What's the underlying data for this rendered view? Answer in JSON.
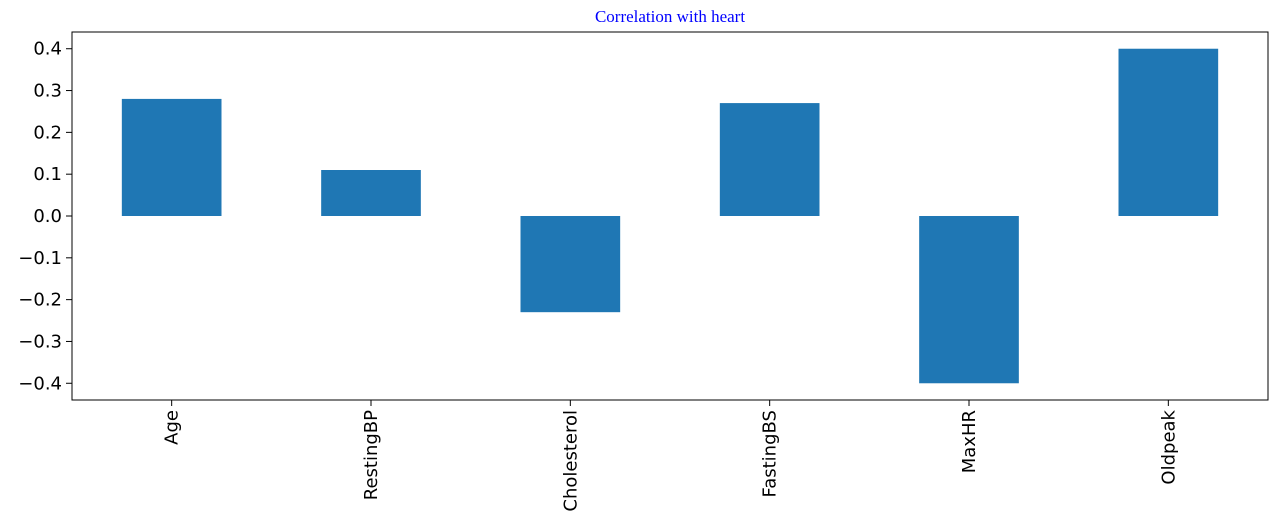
{
  "chart_data": {
    "type": "bar",
    "title": "Correlation with heart",
    "categories": [
      "Age",
      "RestingBP",
      "Cholesterol",
      "FastingBS",
      "MaxHR",
      "Oldpeak"
    ],
    "values": [
      0.28,
      0.11,
      -0.23,
      0.27,
      -0.4,
      0.4
    ],
    "xlabel": "",
    "ylabel": "",
    "ylim": [
      -0.44,
      0.44
    ],
    "yticks": [
      0.4,
      0.3,
      0.2,
      0.1,
      0.0,
      -0.1,
      -0.2,
      -0.3,
      -0.4
    ],
    "ytick_labels": [
      "0.4",
      "0.3",
      "0.2",
      "0.1",
      "0.0",
      "−0.1",
      "−0.2",
      "−0.3",
      "−0.4"
    ],
    "bar_color": "#1f77b4",
    "title_color": "#0000ff",
    "grid": false,
    "legend": false
  }
}
